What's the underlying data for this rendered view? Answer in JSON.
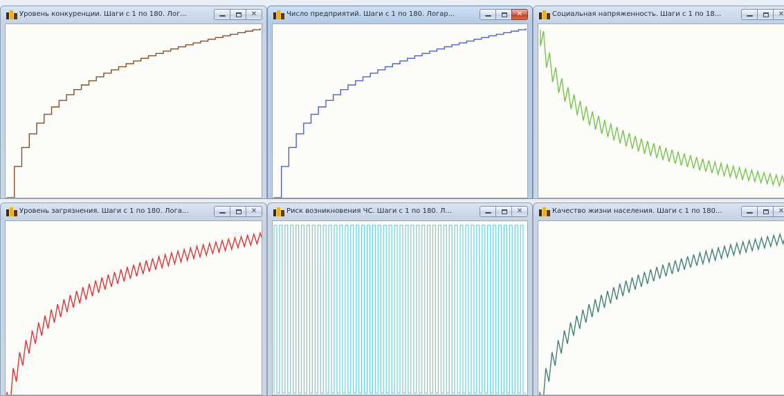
{
  "windows": [
    {
      "id": "competition",
      "title": "Уровень конкуренции. Шаги с 1 по 180. Лог...",
      "color": "#8a4a24",
      "active": false,
      "chart_data": {
        "type": "line",
        "pattern": "step-log-growth"
      }
    },
    {
      "id": "enterprises",
      "title": "Число предприятий. Шаги с 1 по 180. Логар...",
      "color": "#4a5ed0",
      "active": true,
      "chart_data": {
        "type": "line",
        "pattern": "step-log-growth"
      }
    },
    {
      "id": "social-tension",
      "title": "Социальная напряженность. Шаги с 1 по 18...",
      "color": "#74c24a",
      "active": false,
      "chart_data": {
        "type": "line",
        "pattern": "decaying-sawtooth"
      }
    },
    {
      "id": "pollution",
      "title": "Уровень загрязнения. Шаги с 1 по 180. Лога...",
      "color": "#e03030",
      "active": false,
      "chart_data": {
        "type": "line",
        "pattern": "growing-sawtooth"
      }
    },
    {
      "id": "emergency-risk",
      "title": "Риск возникновения ЧС. Шаги с 1 по 180. Л...",
      "color": "#6ccfe0",
      "active": false,
      "chart_data": {
        "type": "line",
        "pattern": "square-oscillation"
      }
    },
    {
      "id": "quality-of-life",
      "title": "Качество жизни населения. Шаги с 1 по 180...",
      "color": "#3f7f78",
      "active": false,
      "chart_data": {
        "type": "line",
        "pattern": "growing-sawtooth"
      }
    }
  ],
  "window_buttons": {
    "minimize_icon": "minimize-icon",
    "maximize_icon": "maximize-icon",
    "close_icon": "close-icon"
  }
}
